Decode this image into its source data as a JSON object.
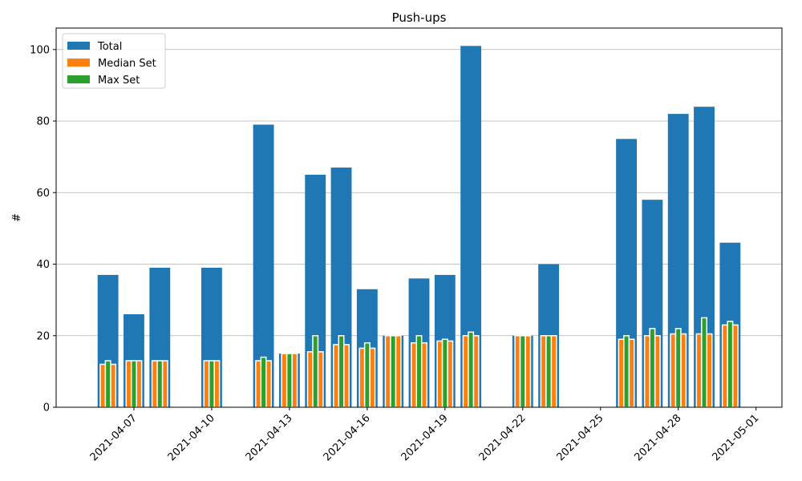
{
  "chart_data": {
    "type": "bar",
    "title": "Push-ups",
    "xlabel": "",
    "ylabel": "#",
    "ylim": [
      0,
      106
    ],
    "xlim": [
      "2021-04-04",
      "2021-05-02"
    ],
    "yticks": [
      0,
      20,
      40,
      60,
      80,
      100
    ],
    "xticks": [
      "2021-04-07",
      "2021-04-10",
      "2021-04-13",
      "2021-04-16",
      "2021-04-19",
      "2021-04-22",
      "2021-04-25",
      "2021-04-28",
      "2021-05-01"
    ],
    "grid": "horizontal",
    "legend_position": "top-left",
    "dates": [
      "2021-04-06",
      "2021-04-07",
      "2021-04-08",
      "2021-04-10",
      "2021-04-12",
      "2021-04-13",
      "2021-04-14",
      "2021-04-15",
      "2021-04-16",
      "2021-04-17",
      "2021-04-18",
      "2021-04-19",
      "2021-04-20",
      "2021-04-22",
      "2021-04-23",
      "2021-04-26",
      "2021-04-27",
      "2021-04-28",
      "2021-04-29",
      "2021-04-30"
    ],
    "series": [
      {
        "name": "Total",
        "color": "#1f77b4",
        "values": [
          37,
          26,
          39,
          39,
          79,
          15,
          65,
          67,
          33,
          20,
          36,
          37,
          101,
          20,
          40,
          75,
          58,
          82,
          84,
          46
        ]
      },
      {
        "name": "Median Set",
        "color": "#ff7f0e",
        "values": [
          12,
          13,
          13,
          13,
          13,
          15,
          15.5,
          17.5,
          16.5,
          20,
          18,
          18.5,
          20,
          20,
          20,
          19,
          20,
          20.5,
          20.5,
          23
        ]
      },
      {
        "name": "Max Set",
        "color": "#2ca02c",
        "values": [
          13,
          13,
          13,
          13,
          14,
          15,
          20,
          20,
          18,
          20,
          20,
          19,
          21,
          20,
          20,
          20,
          22,
          22,
          25,
          24
        ]
      }
    ]
  }
}
